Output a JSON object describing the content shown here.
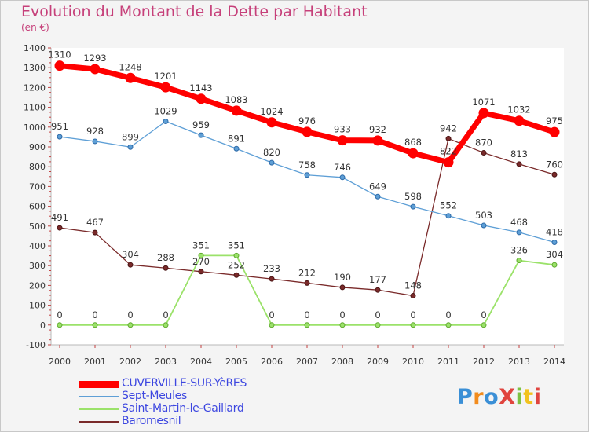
{
  "title": "Evolution du Montant de la Dette par Habitant",
  "unit": "(en €)",
  "logo": {
    "text": "ProXiti",
    "colors": [
      "#3a8fd6",
      "#f28c1e",
      "#3a8fd6",
      "#e0443e",
      "#7cc142",
      "#f2c21e",
      "#e0443e"
    ]
  },
  "chart_data": {
    "type": "line",
    "title": "Evolution du Montant de la Dette par Habitant",
    "ylabel": "(en €)",
    "x": [
      "2000",
      "2001",
      "2002",
      "2003",
      "2004",
      "2005",
      "2006",
      "2007",
      "2008",
      "2009",
      "2010",
      "2011",
      "2012",
      "2013",
      "2014"
    ],
    "yticks": [
      -100,
      0,
      100,
      200,
      300,
      400,
      500,
      600,
      700,
      800,
      900,
      1000,
      1100,
      1200,
      1300,
      1400
    ],
    "ylim": [
      -100,
      1400
    ],
    "grid": false,
    "legend_position": "bottom-left",
    "series": [
      {
        "name": "CUVERVILLE-SUR-YèRES",
        "color": "#ff0000",
        "values": [
          1310,
          1293,
          1248,
          1201,
          1143,
          1083,
          1024,
          976,
          933,
          932,
          868,
          822,
          1071,
          1032,
          975
        ]
      },
      {
        "name": "Sept-Meules",
        "color": "#5e9fd6",
        "values": [
          951,
          928,
          899,
          1029,
          959,
          891,
          820,
          758,
          746,
          649,
          598,
          552,
          503,
          468,
          418
        ]
      },
      {
        "name": "Saint-Martin-le-Gaillard",
        "color": "#9be26a",
        "values": [
          0,
          0,
          0,
          0,
          351,
          351,
          0,
          0,
          0,
          0,
          0,
          0,
          0,
          326,
          304
        ]
      },
      {
        "name": "Baromesnil",
        "color": "#7a2a2a",
        "values": [
          491,
          467,
          304,
          288,
          270,
          252,
          233,
          212,
          190,
          177,
          148,
          942,
          870,
          813,
          760
        ]
      }
    ]
  }
}
